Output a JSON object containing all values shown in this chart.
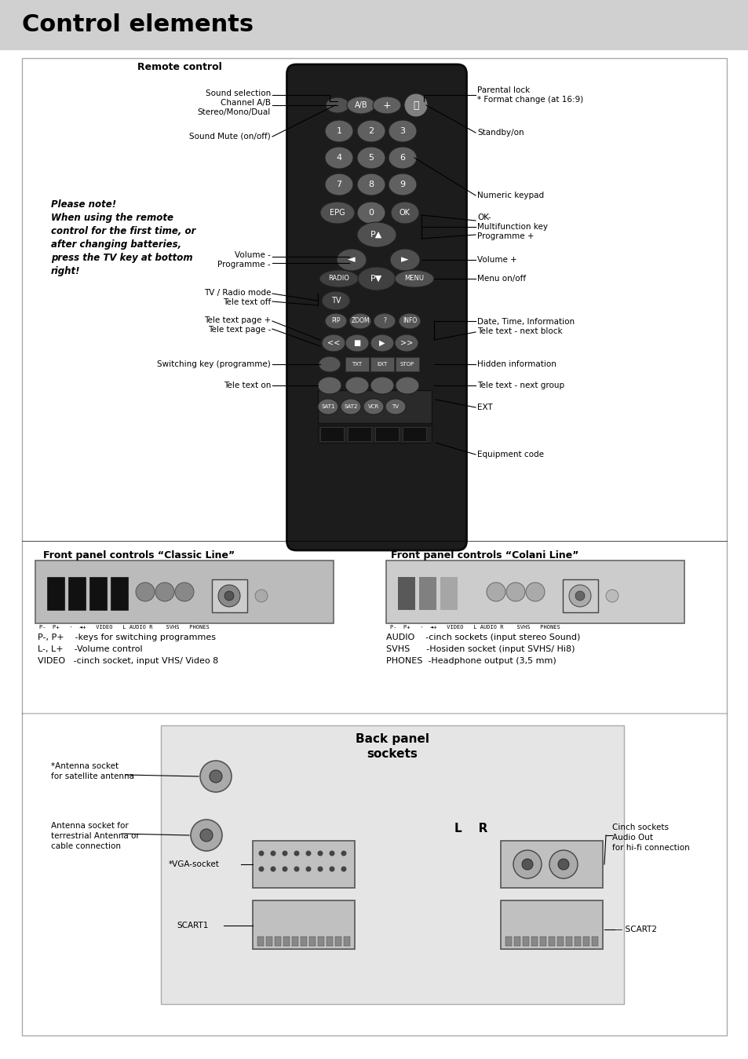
{
  "title": "Control elements",
  "remote_label": "Remote control",
  "front_panel_left_title": "Front panel controls “Classic Line”",
  "front_panel_right_title": "Front panel controls “Colani Line”",
  "front_panel_left_desc": "P-, P+    -keys for switching programmes\nL-, L+    -Volume control\nVIDEO   -cinch socket, input VHS/ Video 8",
  "front_panel_right_desc": "AUDIO    -cinch sockets (input stereo Sound)\nSVHS      -Hosiden socket (input SVHS/ Hi8)\nPHONES  -Headphone output (3,5 mm)",
  "back_panel_title": "Back panel\nsockets",
  "note_text": "Please note!\nWhen using the remote\ncontrol for the first time, or\nafter changing batteries,\npress the TV key at bottom\nright!",
  "header_color": "#d0d0d0",
  "content_border": "#aaaaaa",
  "remote_body_color": "#1a1a1a",
  "remote_btn_color": "#666666",
  "remote_btn_dark": "#444444",
  "remote_btn_light": "#888888"
}
